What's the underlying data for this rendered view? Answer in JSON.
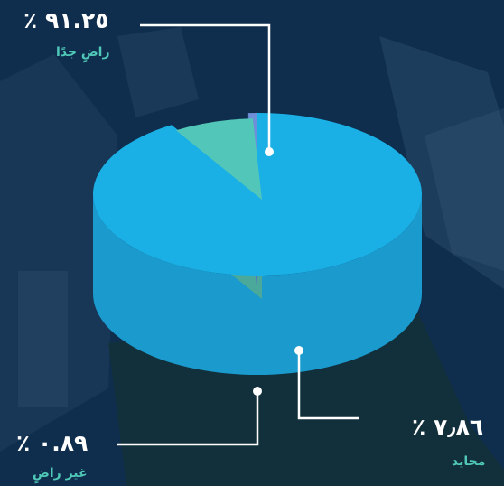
{
  "chart_data": {
    "type": "pie",
    "slices": [
      {
        "label": "راضٍ جدًا",
        "value": 91.25,
        "value_text": "٪ ٩١.٢٥",
        "color": "#1ab0e6",
        "side_color": "#1a9acd"
      },
      {
        "label": "محايد",
        "value": 7.86,
        "value_text": "٪ ٧٫٨٦",
        "color": "#52c6b8",
        "side_color": "#4aa99a"
      },
      {
        "label": "غير راضٍ",
        "value": 0.89,
        "value_text": "٪ ٠.٨٩",
        "color": "#6f8fd8",
        "side_color": "#5a72c4"
      }
    ],
    "label_color": "#4fc8b8"
  }
}
